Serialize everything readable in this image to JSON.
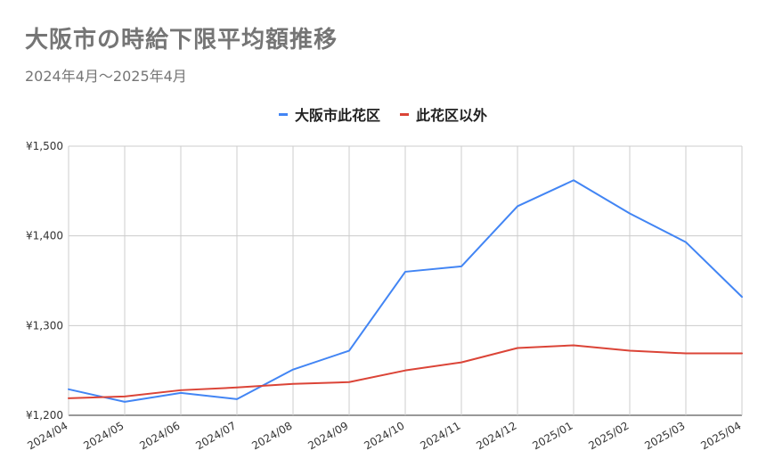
{
  "title": "大阪市の時給下限平均額推移",
  "subtitle": "2024年4月～2025年4月",
  "chart_data": {
    "type": "line",
    "title": "大阪市の時給下限平均額推移",
    "subtitle": "2024年4月～2025年4月",
    "categories": [
      "2024/04",
      "2024/05",
      "2024/06",
      "2024/07",
      "2024/08",
      "2024/09",
      "2024/10",
      "2024/11",
      "2024/12",
      "2025/01",
      "2025/02",
      "2025/03",
      "2025/04"
    ],
    "series": [
      {
        "name": "大阪市此花区",
        "color": "#4285f4",
        "values": [
          1229,
          1215,
          1225,
          1218,
          1251,
          1272,
          1360,
          1366,
          1433,
          1462,
          1425,
          1393,
          1332
        ]
      },
      {
        "name": "此花区以外",
        "color": "#db4437",
        "values": [
          1219,
          1221,
          1228,
          1231,
          1235,
          1237,
          1250,
          1259,
          1275,
          1278,
          1272,
          1269,
          1269
        ]
      }
    ],
    "ylim": [
      1200,
      1500
    ],
    "yticks": [
      "¥1,200",
      "¥1,300",
      "¥1,400",
      "¥1,500"
    ],
    "ytick_values": [
      1200,
      1300,
      1400,
      1500
    ],
    "grid": true,
    "legend": "top-center"
  }
}
